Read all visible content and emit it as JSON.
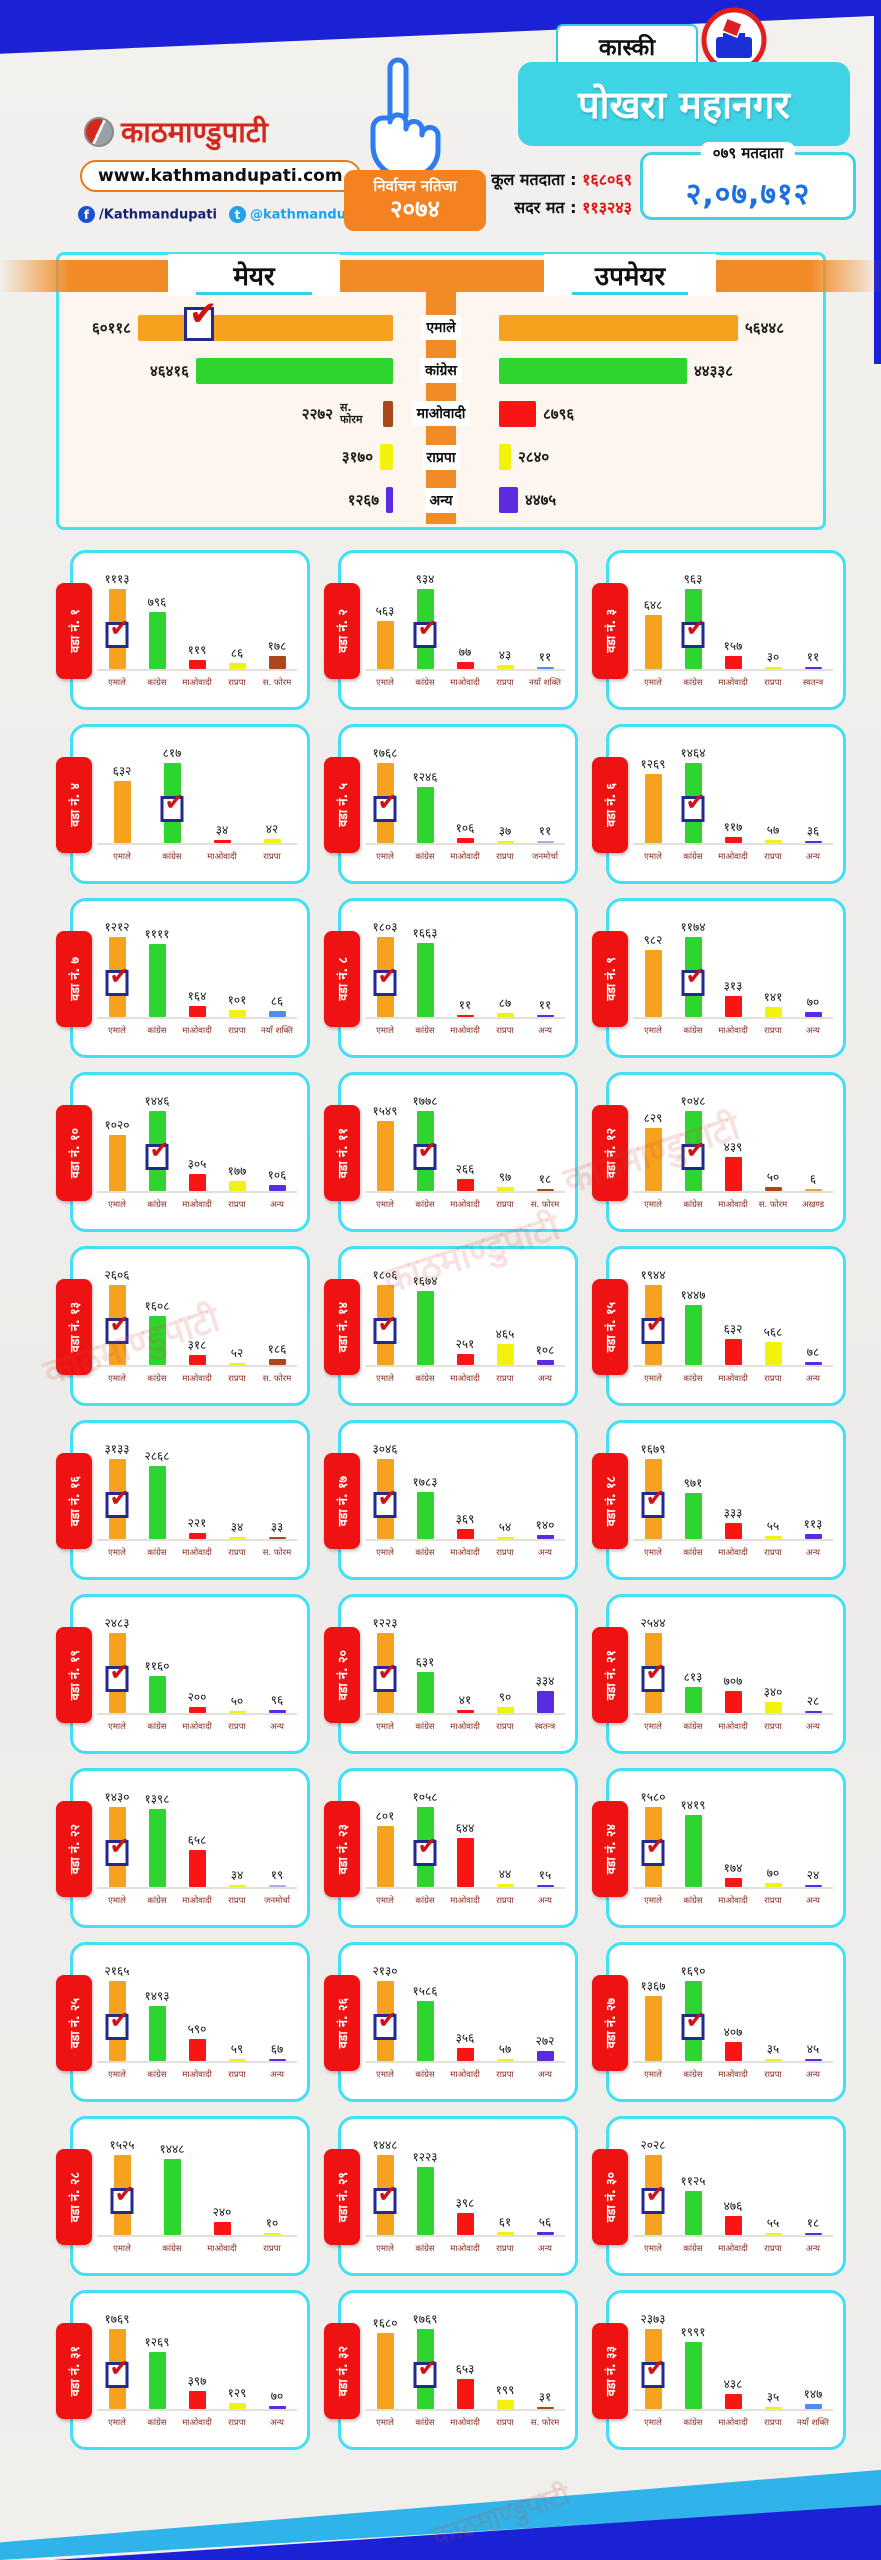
{
  "watermark": "काठमाण्डुपाटी",
  "header": {
    "brand": {
      "logo_text": "काठमाण्डुपाटी",
      "website": "www.kathmandupati.com",
      "facebook": "/Kathmandupati",
      "twitter": "@kathmandupati1"
    },
    "election_badge": {
      "line1": "निर्वाचन नतिजा",
      "line2": "२०७४"
    },
    "district_badge": "कास्की",
    "title": "पोखरा महानगर",
    "voters_chip": {
      "label": "०७९ मतदाता",
      "value": "२,०७,७१२"
    },
    "turnout": {
      "total_label": "कूल मतदाता :",
      "total_value": "१६८०६९",
      "valid_label": "सदर मत :",
      "valid_value": "११३२४३"
    }
  },
  "summary": {
    "center_labels": [
      "एमाले",
      "कांग्रेस",
      "माओवादी",
      "राप्रपा",
      "अन्य"
    ]
  },
  "party_colors": {
    "एमाले": "#F6A21E",
    "कांग्रेस": "#2ED52E",
    "माओवादी": "#FA1414",
    "राप्रपा": "#F2F20C",
    "अन्य": "#5A2BE0",
    "स. फोरम": "#A8491C",
    "नयाँ शक्ति": "#4D8EF0",
    "स्वतन्त्र": "#5A2BE0",
    "जनमोर्चा": "#B9A7EE",
    "अखण्ड": "#E8A04A"
  },
  "chart_data": [
    {
      "type": "bar",
      "orientation": "horizontal",
      "title": "मेयर",
      "categories": [
        "एमाले",
        "कांग्रेस",
        "स. फोरम",
        "राप्रपा",
        "अन्य"
      ],
      "values": [
        60118,
        46416,
        2272,
        3170,
        1267
      ],
      "value_labels": [
        "६०११८",
        "४६४१६",
        "२२७२",
        "३१७०",
        "१२६७"
      ],
      "winner_index": 0
    },
    {
      "type": "bar",
      "orientation": "horizontal",
      "title": "उपमेयर",
      "categories": [
        "एमाले",
        "कांग्रेस",
        "माओवादी",
        "राप्रपा",
        "अन्य"
      ],
      "values": [
        56448,
        44338,
        8796,
        2840,
        4475
      ],
      "value_labels": [
        "५६४४८",
        "४४३३८",
        "८७९६",
        "२८४०",
        "४४७५"
      ],
      "winner_index": -1
    },
    {
      "type": "bar",
      "title": "वडा नं. १",
      "categories": [
        "एमाले",
        "कांग्रेस",
        "माओवादी",
        "राप्रपा",
        "स. फोरम"
      ],
      "values": [
        1113,
        796,
        119,
        86,
        178
      ],
      "value_labels": [
        "१११३",
        "७९६",
        "११९",
        "८६",
        "१७८"
      ],
      "winner_index": 0
    },
    {
      "type": "bar",
      "title": "वडा नं. २",
      "categories": [
        "एमाले",
        "कांग्रेस",
        "माओवादी",
        "राप्रपा",
        "नयाँ शक्ति"
      ],
      "values": [
        563,
        934,
        77,
        43,
        11
      ],
      "value_labels": [
        "५६३",
        "९३४",
        "७७",
        "४३",
        "११"
      ],
      "winner_index": 1
    },
    {
      "type": "bar",
      "title": "वडा नं. ३",
      "categories": [
        "एमाले",
        "कांग्रेस",
        "माओवादी",
        "राप्रपा",
        "स्वतन्त्र"
      ],
      "values": [
        648,
        963,
        157,
        30,
        11
      ],
      "value_labels": [
        "६४८",
        "९६३",
        "१५७",
        "३०",
        "११"
      ],
      "winner_index": 1
    },
    {
      "type": "bar",
      "title": "वडा नं. ४",
      "categories": [
        "एमाले",
        "कांग्रेस",
        "माओवादी",
        "राप्रपा"
      ],
      "values": [
        632,
        817,
        34,
        42
      ],
      "value_labels": [
        "६३२",
        "८१७",
        "३४",
        "४२"
      ],
      "winner_index": 1
    },
    {
      "type": "bar",
      "title": "वडा नं. ५",
      "categories": [
        "एमाले",
        "कांग्रेस",
        "माओवादी",
        "राप्रपा",
        "जनमोर्चा"
      ],
      "values": [
        1768,
        1246,
        106,
        37,
        11
      ],
      "value_labels": [
        "१७६८",
        "१२४६",
        "१०६",
        "३७",
        "११"
      ],
      "winner_index": 0
    },
    {
      "type": "bar",
      "title": "वडा नं. ६",
      "categories": [
        "एमाले",
        "कांग्रेस",
        "माओवादी",
        "राप्रपा",
        "अन्य"
      ],
      "values": [
        1269,
        1464,
        117,
        57,
        36
      ],
      "value_labels": [
        "१२६९",
        "१४६४",
        "११७",
        "५७",
        "३६"
      ],
      "winner_index": 1
    },
    {
      "type": "bar",
      "title": "वडा नं. ७",
      "categories": [
        "एमाले",
        "कांग्रेस",
        "माओवादी",
        "राप्रपा",
        "नयाँ शक्ति"
      ],
      "values": [
        1212,
        1111,
        164,
        101,
        86
      ],
      "value_labels": [
        "१२१२",
        "११११",
        "१६४",
        "१०१",
        "८६"
      ],
      "winner_index": 0
    },
    {
      "type": "bar",
      "title": "वडा नं. ८",
      "categories": [
        "एमाले",
        "कांग्रेस",
        "माओवादी",
        "राप्रपा",
        "अन्य"
      ],
      "values": [
        1803,
        1663,
        11,
        87,
        11
      ],
      "value_labels": [
        "१८०३",
        "१६६३",
        "११",
        "८७",
        "११"
      ],
      "winner_index": 0
    },
    {
      "type": "bar",
      "title": "वडा नं. ९",
      "categories": [
        "एमाले",
        "कांग्रेस",
        "माओवादी",
        "राप्रपा",
        "अन्य"
      ],
      "values": [
        982,
        1174,
        313,
        141,
        70
      ],
      "value_labels": [
        "९८२",
        "११७४",
        "३१३",
        "१४१",
        "७०"
      ],
      "winner_index": 1
    },
    {
      "type": "bar",
      "title": "वडा नं. १०",
      "categories": [
        "एमाले",
        "कांग्रेस",
        "माओवादी",
        "राप्रपा",
        "अन्य"
      ],
      "values": [
        1020,
        1446,
        305,
        177,
        106
      ],
      "value_labels": [
        "१०२०",
        "१४४६",
        "३०५",
        "१७७",
        "१०६"
      ],
      "winner_index": 1
    },
    {
      "type": "bar",
      "title": "वडा नं. ११",
      "categories": [
        "एमाले",
        "कांग्रेस",
        "माओवादी",
        "राप्रपा",
        "स. फोरम"
      ],
      "values": [
        1549,
        1778,
        266,
        97,
        18
      ],
      "value_labels": [
        "१५४९",
        "१७७८",
        "२६६",
        "९७",
        "१८"
      ],
      "winner_index": 1
    },
    {
      "type": "bar",
      "title": "वडा नं. १२",
      "categories": [
        "एमाले",
        "कांग्रेस",
        "माओवादी",
        "स. फोरम",
        "अखण्ड"
      ],
      "values": [
        829,
        1048,
        439,
        50,
        6
      ],
      "value_labels": [
        "८२९",
        "१०४८",
        "४३९",
        "५०",
        "६"
      ],
      "winner_index": 1
    },
    {
      "type": "bar",
      "title": "वडा नं. १३",
      "categories": [
        "एमाले",
        "कांग्रेस",
        "माओवादी",
        "राप्रपा",
        "स. फोरम"
      ],
      "values": [
        2606,
        1608,
        318,
        52,
        186
      ],
      "value_labels": [
        "२६०६",
        "१६०८",
        "३१८",
        "५२",
        "१८६"
      ],
      "winner_index": 0
    },
    {
      "type": "bar",
      "title": "वडा नं. १४",
      "categories": [
        "एमाले",
        "कांग्रेस",
        "माओवादी",
        "राप्रपा",
        "अन्य"
      ],
      "values": [
        1806,
        1674,
        251,
        465,
        108
      ],
      "value_labels": [
        "१८०६",
        "१६७४",
        "२५१",
        "४६५",
        "१०८"
      ],
      "winner_index": 0
    },
    {
      "type": "bar",
      "title": "वडा नं. १५",
      "categories": [
        "एमाले",
        "कांग्रेस",
        "माओवादी",
        "राप्रपा",
        "अन्य"
      ],
      "values": [
        1944,
        1447,
        632,
        568,
        78
      ],
      "value_labels": [
        "१९४४",
        "१४४७",
        "६३२",
        "५६८",
        "७८"
      ],
      "winner_index": 0
    },
    {
      "type": "bar",
      "title": "वडा नं. १६",
      "categories": [
        "एमाले",
        "कांग्रेस",
        "माओवादी",
        "राप्रपा",
        "स. फोरम"
      ],
      "values": [
        3133,
        2868,
        221,
        34,
        33
      ],
      "value_labels": [
        "३१३३",
        "२८६८",
        "२२१",
        "३४",
        "३३"
      ],
      "winner_index": 0
    },
    {
      "type": "bar",
      "title": "वडा नं. १७",
      "categories": [
        "एमाले",
        "कांग्रेस",
        "माओवादी",
        "राप्रपा",
        "अन्य"
      ],
      "values": [
        3046,
        1783,
        369,
        54,
        140
      ],
      "value_labels": [
        "३०४६",
        "१७८३",
        "३६९",
        "५४",
        "१४०"
      ],
      "winner_index": 0
    },
    {
      "type": "bar",
      "title": "वडा नं. १८",
      "categories": [
        "एमाले",
        "कांग्रेस",
        "माओवादी",
        "राप्रपा",
        "अन्य"
      ],
      "values": [
        1679,
        971,
        333,
        55,
        113
      ],
      "value_labels": [
        "१६७९",
        "९७१",
        "३३३",
        "५५",
        "११३"
      ],
      "winner_index": 0
    },
    {
      "type": "bar",
      "title": "वडा नं. १९",
      "categories": [
        "एमाले",
        "कांग्रेस",
        "माओवादी",
        "राप्रपा",
        "अन्य"
      ],
      "values": [
        2483,
        1160,
        200,
        50,
        96
      ],
      "value_labels": [
        "२४८३",
        "११६०",
        "२००",
        "५०",
        "९६"
      ],
      "winner_index": 0
    },
    {
      "type": "bar",
      "title": "वडा नं. २०",
      "categories": [
        "एमाले",
        "कांग्रेस",
        "माओवादी",
        "राप्रपा",
        "स्वतन्त्र"
      ],
      "values": [
        1223,
        631,
        41,
        90,
        334
      ],
      "value_labels": [
        "१२२३",
        "६३१",
        "४१",
        "९०",
        "३३४"
      ],
      "winner_index": 0
    },
    {
      "type": "bar",
      "title": "वडा नं. २१",
      "categories": [
        "एमाले",
        "कांग्रेस",
        "माओवादी",
        "राप्रपा",
        "अन्य"
      ],
      "values": [
        2544,
        813,
        707,
        340,
        28
      ],
      "value_labels": [
        "२५४४",
        "८१३",
        "७०७",
        "३४०",
        "२८"
      ],
      "winner_index": 0
    },
    {
      "type": "bar",
      "title": "वडा नं. २२",
      "categories": [
        "एमाले",
        "कांग्रेस",
        "माओवादी",
        "राप्रपा",
        "जनमोर्चा"
      ],
      "values": [
        1430,
        1398,
        658,
        34,
        19
      ],
      "value_labels": [
        "१४३०",
        "१३९८",
        "६५८",
        "३४",
        "१९"
      ],
      "winner_index": 0
    },
    {
      "type": "bar",
      "title": "वडा नं. २३",
      "categories": [
        "एमाले",
        "कांग्रेस",
        "माओवादी",
        "राप्रपा",
        "अन्य"
      ],
      "values": [
        801,
        1058,
        644,
        44,
        15
      ],
      "value_labels": [
        "८०१",
        "१०५८",
        "६४४",
        "४४",
        "१५"
      ],
      "winner_index": 1
    },
    {
      "type": "bar",
      "title": "वडा नं. २४",
      "categories": [
        "एमाले",
        "कांग्रेस",
        "माओवादी",
        "राप्रपा",
        "अन्य"
      ],
      "values": [
        1580,
        1419,
        174,
        70,
        24
      ],
      "value_labels": [
        "१५८०",
        "१४१९",
        "१७४",
        "७०",
        "२४"
      ],
      "winner_index": 0
    },
    {
      "type": "bar",
      "title": "वडा नं. २५",
      "categories": [
        "एमाले",
        "कांग्रेस",
        "माओवादी",
        "राप्रपा",
        "अन्य"
      ],
      "values": [
        2165,
        1493,
        590,
        59,
        67
      ],
      "value_labels": [
        "२१६५",
        "१४९३",
        "५९०",
        "५९",
        "६७"
      ],
      "winner_index": 0
    },
    {
      "type": "bar",
      "title": "वडा नं. २६",
      "categories": [
        "एमाले",
        "कांग्रेस",
        "माओवादी",
        "राप्रपा",
        "अन्य"
      ],
      "values": [
        2130,
        1586,
        356,
        57,
        272
      ],
      "value_labels": [
        "२१३०",
        "१५८६",
        "३५६",
        "५७",
        "२७२"
      ],
      "winner_index": 0
    },
    {
      "type": "bar",
      "title": "वडा नं. २७",
      "categories": [
        "एमाले",
        "कांग्रेस",
        "माओवादी",
        "राप्रपा",
        "अन्य"
      ],
      "values": [
        1367,
        1690,
        407,
        35,
        45
      ],
      "value_labels": [
        "१३६७",
        "१६९०",
        "४०७",
        "३५",
        "४५"
      ],
      "winner_index": 1
    },
    {
      "type": "bar",
      "title": "वडा नं. २८",
      "categories": [
        "एमाले",
        "कांग्रेस",
        "माओवादी",
        "राप्रपा"
      ],
      "values": [
        1525,
        1448,
        240,
        10
      ],
      "value_labels": [
        "१५२५",
        "१४४८",
        "२४०",
        "१०"
      ],
      "winner_index": 0
    },
    {
      "type": "bar",
      "title": "वडा नं. २९",
      "categories": [
        "एमाले",
        "कांग्रेस",
        "माओवादी",
        "राप्रपा",
        "अन्य"
      ],
      "values": [
        1448,
        1223,
        398,
        61,
        56
      ],
      "value_labels": [
        "१४४८",
        "१२२३",
        "३९८",
        "६१",
        "५६"
      ],
      "winner_index": 0
    },
    {
      "type": "bar",
      "title": "वडा नं. ३०",
      "categories": [
        "एमाले",
        "कांग्रेस",
        "माओवादी",
        "राप्रपा",
        "अन्य"
      ],
      "values": [
        2028,
        1125,
        476,
        55,
        18
      ],
      "value_labels": [
        "२०२८",
        "११२५",
        "४७६",
        "५५",
        "१८"
      ],
      "winner_index": 0
    },
    {
      "type": "bar",
      "title": "वडा नं. ३१",
      "categories": [
        "एमाले",
        "कांग्रेस",
        "माओवादी",
        "राप्रपा",
        "अन्य"
      ],
      "values": [
        1769,
        1269,
        397,
        129,
        70
      ],
      "value_labels": [
        "१७६९",
        "१२६९",
        "३९७",
        "१२९",
        "७०"
      ],
      "winner_index": 0
    },
    {
      "type": "bar",
      "title": "वडा नं. ३२",
      "categories": [
        "एमाले",
        "कांग्रेस",
        "माओवादी",
        "राप्रपा",
        "स. फोरम"
      ],
      "values": [
        1680,
        1769,
        653,
        199,
        31
      ],
      "value_labels": [
        "१६८०",
        "१७६९",
        "६५३",
        "१९९",
        "३१"
      ],
      "winner_index": 1
    },
    {
      "type": "bar",
      "title": "वडा नं. ३३",
      "categories": [
        "एमाले",
        "कांग्रेस",
        "माओवादी",
        "राप्रपा",
        "नयाँ शक्ति"
      ],
      "values": [
        2373,
        1991,
        438,
        35,
        147
      ],
      "value_labels": [
        "२३७३",
        "१९९१",
        "४३८",
        "३५",
        "१४७"
      ],
      "winner_index": 0
    }
  ]
}
